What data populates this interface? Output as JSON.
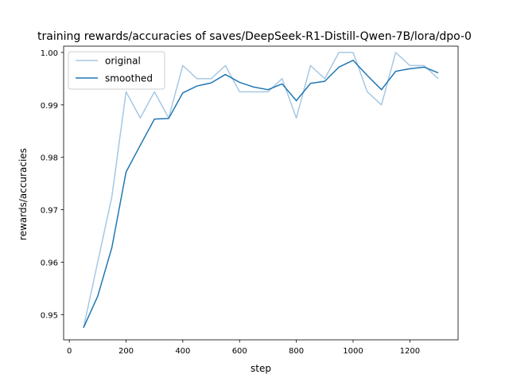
{
  "chart_data": {
    "type": "line",
    "title": "training rewards/accuracies of saves/DeepSeek-R1-Distill-Qwen-7B/lora/dpo-0",
    "xlabel": "step",
    "ylabel": "rewards/accuracies",
    "xlim": [
      -20,
      1370
    ],
    "ylim": [
      0.9452,
      1.0012
    ],
    "xticks": [
      0,
      200,
      400,
      600,
      800,
      1000,
      1200
    ],
    "yticks": [
      0.95,
      0.96,
      0.97,
      0.98,
      0.99,
      1.0
    ],
    "ytick_labels": [
      "0.95",
      "0.96",
      "0.97",
      "0.98",
      "0.99",
      "1.00"
    ],
    "grid": false,
    "legend_position": "top-left",
    "x": [
      50,
      100,
      150,
      200,
      250,
      300,
      350,
      400,
      450,
      500,
      550,
      600,
      650,
      700,
      750,
      800,
      850,
      900,
      950,
      1000,
      1050,
      1100,
      1150,
      1200,
      1250,
      1300
    ],
    "series": [
      {
        "name": "original",
        "color": "#a6c8e3",
        "values": [
          0.9475,
          0.96,
          0.9725,
          0.9925,
          0.9875,
          0.9925,
          0.9875,
          0.9975,
          0.995,
          0.995,
          0.9975,
          0.9925,
          0.9925,
          0.9925,
          0.995,
          0.9875,
          0.9975,
          0.995,
          1.0,
          1.0,
          0.9925,
          0.99,
          1.0,
          0.9975,
          0.9975,
          0.995
        ]
      },
      {
        "name": "smoothed",
        "color": "#1f77b4",
        "values": [
          0.9475,
          0.9535,
          0.9628,
          0.9772,
          0.9823,
          0.9873,
          0.9874,
          0.9923,
          0.9936,
          0.9942,
          0.9958,
          0.9943,
          0.9934,
          0.9929,
          0.994,
          0.9908,
          0.9941,
          0.9945,
          0.9972,
          0.9985,
          0.9956,
          0.9929,
          0.9964,
          0.9969,
          0.9972,
          0.9961
        ]
      }
    ]
  }
}
